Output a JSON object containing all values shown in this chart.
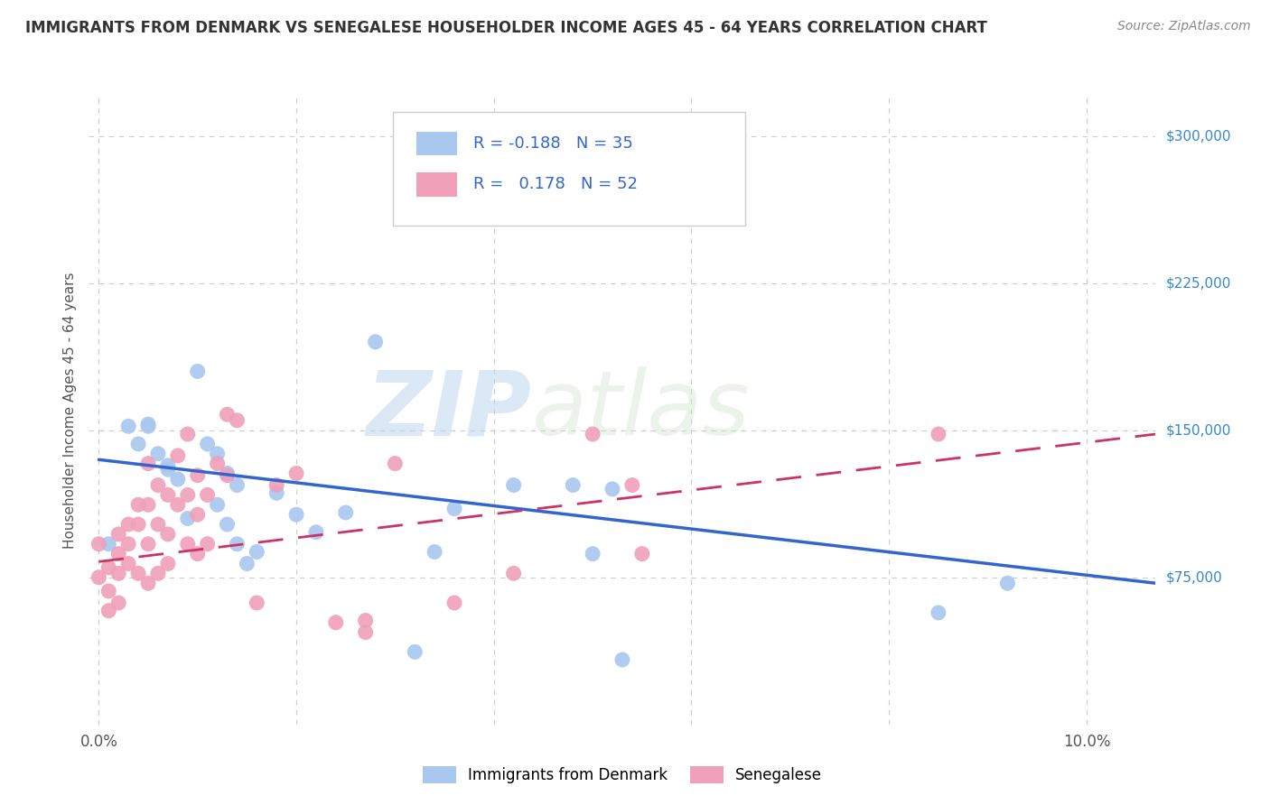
{
  "title": "IMMIGRANTS FROM DENMARK VS SENEGALESE HOUSEHOLDER INCOME AGES 45 - 64 YEARS CORRELATION CHART",
  "source": "Source: ZipAtlas.com",
  "ylabel": "Householder Income Ages 45 - 64 years",
  "r_denmark": -0.188,
  "n_denmark": 35,
  "r_senegalese": 0.178,
  "n_senegalese": 52,
  "yticks": [
    0,
    75000,
    150000,
    225000,
    300000
  ],
  "ylim": [
    0,
    320000
  ],
  "xlim": [
    -0.001,
    0.107
  ],
  "xticks": [
    0.0,
    0.02,
    0.04,
    0.06,
    0.08,
    0.1
  ],
  "watermark_zip": "ZIP",
  "watermark_atlas": "atlas",
  "denmark_color": "#a8c8f0",
  "denmark_line_color": "#3366cc",
  "senegalese_color": "#f0a0b8",
  "senegalese_line_color": "#cc3366",
  "denmark_scatter_x": [
    0.001,
    0.003,
    0.004,
    0.005,
    0.005,
    0.006,
    0.007,
    0.007,
    0.008,
    0.009,
    0.01,
    0.011,
    0.012,
    0.012,
    0.013,
    0.013,
    0.014,
    0.014,
    0.015,
    0.016,
    0.018,
    0.02,
    0.022,
    0.025,
    0.028,
    0.032,
    0.034,
    0.036,
    0.042,
    0.048,
    0.05,
    0.052,
    0.053,
    0.085,
    0.092
  ],
  "denmark_scatter_y": [
    92000,
    152000,
    143000,
    152000,
    153000,
    138000,
    130000,
    132000,
    125000,
    105000,
    180000,
    143000,
    138000,
    112000,
    128000,
    102000,
    122000,
    92000,
    82000,
    88000,
    118000,
    107000,
    98000,
    108000,
    195000,
    37000,
    88000,
    110000,
    122000,
    122000,
    87000,
    120000,
    33000,
    57000,
    72000
  ],
  "senegalese_scatter_x": [
    0.0,
    0.0,
    0.001,
    0.001,
    0.001,
    0.002,
    0.002,
    0.002,
    0.002,
    0.003,
    0.003,
    0.003,
    0.004,
    0.004,
    0.004,
    0.005,
    0.005,
    0.005,
    0.005,
    0.006,
    0.006,
    0.006,
    0.007,
    0.007,
    0.007,
    0.008,
    0.008,
    0.009,
    0.009,
    0.009,
    0.01,
    0.01,
    0.01,
    0.011,
    0.011,
    0.012,
    0.013,
    0.013,
    0.014,
    0.016,
    0.018,
    0.02,
    0.024,
    0.027,
    0.027,
    0.03,
    0.036,
    0.042,
    0.05,
    0.054,
    0.055,
    0.085
  ],
  "senegalese_scatter_y": [
    92000,
    75000,
    80000,
    68000,
    58000,
    97000,
    87000,
    77000,
    62000,
    102000,
    92000,
    82000,
    112000,
    102000,
    77000,
    133000,
    112000,
    92000,
    72000,
    122000,
    102000,
    77000,
    117000,
    97000,
    82000,
    137000,
    112000,
    148000,
    117000,
    92000,
    127000,
    107000,
    87000,
    117000,
    92000,
    133000,
    158000,
    127000,
    155000,
    62000,
    122000,
    128000,
    52000,
    53000,
    47000,
    133000,
    62000,
    77000,
    148000,
    122000,
    87000,
    148000
  ],
  "denmark_trend_x": [
    0.0,
    0.107
  ],
  "denmark_trend_y": [
    135000,
    72000
  ],
  "senegalese_trend_x": [
    0.0,
    0.107
  ],
  "senegalese_trend_y": [
    83000,
    148000
  ],
  "background_color": "#ffffff",
  "grid_color": "#cccccc"
}
